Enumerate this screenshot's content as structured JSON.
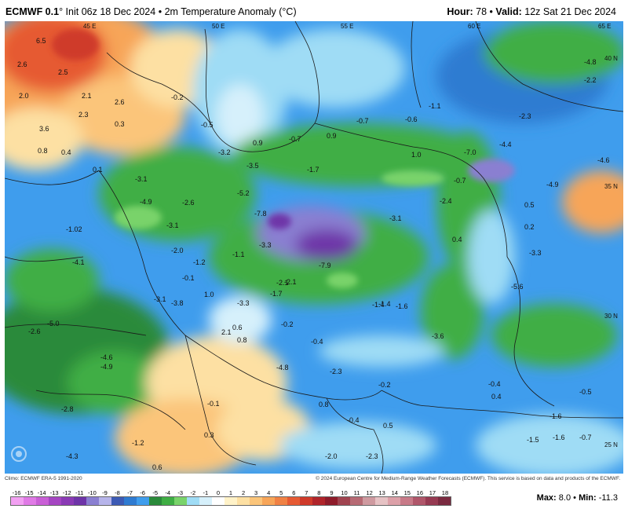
{
  "header": {
    "model": "ECMWF 0.1",
    "degree": "°",
    "init": "Init 06z 18 Dec 2024",
    "bullet": "•",
    "product": "2m Temperature Anomaly (°C)",
    "hour_label": "Hour:",
    "hour_value": "78",
    "valid_label": "Valid:",
    "valid_value": "12z Sat 21 Dec 2024"
  },
  "map": {
    "grid_labels": [
      "45 E",
      "50 E",
      "55 E",
      "60 E",
      "65 E",
      "40 N",
      "35 N",
      "30 N",
      "25 N"
    ],
    "anomaly_values": [
      {
        "v": "6.5",
        "c": "warm"
      },
      {
        "v": "2.6",
        "c": "warm"
      },
      {
        "v": "2.5",
        "c": "warm"
      },
      {
        "v": "2.0",
        "c": "warm"
      },
      {
        "v": "2.1",
        "c": "warm"
      },
      {
        "v": "2.6",
        "c": "warm"
      },
      {
        "v": "3.6",
        "c": "warm"
      },
      {
        "v": "2.3",
        "c": "warm"
      },
      {
        "v": "0.8",
        "c": "warm"
      },
      {
        "v": "0.4",
        "c": "warm"
      },
      {
        "v": "0.3",
        "c": "warm"
      },
      {
        "v": "-0.5",
        "c": "cool"
      },
      {
        "v": "-0.2",
        "c": "cool"
      },
      {
        "v": "0.9",
        "c": "warm"
      },
      {
        "v": "-0.7",
        "c": "cool"
      },
      {
        "v": "0.9",
        "c": "warm"
      },
      {
        "v": "-0.7",
        "c": "cool"
      },
      {
        "v": "-1.1",
        "c": "cool"
      },
      {
        "v": "-0.6",
        "c": "cool"
      },
      {
        "v": "-2.3",
        "c": "cool"
      },
      {
        "v": "-4.4",
        "c": "cool"
      },
      {
        "v": "-7.0",
        "c": "cool"
      },
      {
        "v": "-4.6",
        "c": "cool"
      },
      {
        "v": "-4.8",
        "c": "cool"
      },
      {
        "v": "-2.2",
        "c": "cool"
      },
      {
        "v": "0.1",
        "c": "warm"
      },
      {
        "v": "-3.1",
        "c": "cool"
      },
      {
        "v": "-4.9",
        "c": "cool"
      },
      {
        "v": "-2.6",
        "c": "cool"
      },
      {
        "v": "-3.2",
        "c": "cool"
      },
      {
        "v": "-3.5",
        "c": "cool"
      },
      {
        "v": "-1.7",
        "c": "cool"
      },
      {
        "v": "1.0",
        "c": "warm"
      },
      {
        "v": "-5.2",
        "c": "cool"
      },
      {
        "v": "-7.8",
        "c": "cool"
      },
      {
        "v": "-3.1",
        "c": "cool"
      },
      {
        "v": "-3.1",
        "c": "cool"
      },
      {
        "v": "-2.1",
        "c": "cool"
      },
      {
        "v": "-1.4",
        "c": "cool"
      },
      {
        "v": "-2.4",
        "c": "cool"
      },
      {
        "v": "-0.7",
        "c": "cool"
      },
      {
        "v": "-4.9",
        "c": "cool"
      },
      {
        "v": "-1.02",
        "c": "cool"
      },
      {
        "v": "-2.0",
        "c": "cool"
      },
      {
        "v": "-1.2",
        "c": "cool"
      },
      {
        "v": "-1.1",
        "c": "cool"
      },
      {
        "v": "-3.3",
        "c": "cool"
      },
      {
        "v": "-7.9",
        "c": "cool"
      },
      {
        "v": "0.4",
        "c": "warm"
      },
      {
        "v": "0.5",
        "c": "warm"
      },
      {
        "v": "0.2",
        "c": "warm"
      },
      {
        "v": "-3.3",
        "c": "cool"
      },
      {
        "v": "-4.1",
        "c": "cool"
      },
      {
        "v": "-0.1",
        "c": "cool"
      },
      {
        "v": "1.0",
        "c": "warm"
      },
      {
        "v": "-1.7",
        "c": "cool"
      },
      {
        "v": "-2.1",
        "c": "cool"
      },
      {
        "v": "-1.4",
        "c": "cool"
      },
      {
        "v": "-1.6",
        "c": "cool"
      },
      {
        "v": "-5.6",
        "c": "cool"
      },
      {
        "v": "-3.1",
        "c": "cool"
      },
      {
        "v": "-3.8",
        "c": "cool"
      },
      {
        "v": "-3.3",
        "c": "cool"
      },
      {
        "v": "-5.0",
        "c": "cool"
      },
      {
        "v": "-2.6",
        "c": "cool"
      },
      {
        "v": "-0.2",
        "c": "cool"
      },
      {
        "v": "0.6",
        "c": "warm"
      },
      {
        "v": "2.1",
        "c": "warm"
      },
      {
        "v": "0.8",
        "c": "warm"
      },
      {
        "v": "-0.4",
        "c": "cool"
      },
      {
        "v": "-3.6",
        "c": "cool"
      },
      {
        "v": "-4.8",
        "c": "cool"
      },
      {
        "v": "-4.9",
        "c": "cool"
      },
      {
        "v": "-4.6",
        "c": "cool"
      },
      {
        "v": "-2.3",
        "c": "cool"
      },
      {
        "v": "-0.4",
        "c": "cool"
      },
      {
        "v": "0.4",
        "c": "warm"
      },
      {
        "v": "-0.2",
        "c": "cool"
      },
      {
        "v": "-0.5",
        "c": "cool"
      },
      {
        "v": "-0.1",
        "c": "cool"
      },
      {
        "v": "0.8",
        "c": "warm"
      },
      {
        "v": "-0.4",
        "c": "cool"
      },
      {
        "v": "-1.6",
        "c": "cool"
      },
      {
        "v": "-2.8",
        "c": "cool"
      },
      {
        "v": "0.5",
        "c": "warm"
      },
      {
        "v": "0.3",
        "c": "warm"
      },
      {
        "v": "-1.2",
        "c": "cool"
      },
      {
        "v": "-4.3",
        "c": "cool"
      },
      {
        "v": "0.6",
        "c": "warm"
      },
      {
        "v": "-2.0",
        "c": "cool"
      },
      {
        "v": "-2.3",
        "c": "cool"
      },
      {
        "v": "-1.6",
        "c": "cool"
      },
      {
        "v": "-0.7",
        "c": "cool"
      },
      {
        "v": "-1.5",
        "c": "cool"
      }
    ]
  },
  "credits": {
    "climo": "Climo: ECMWF ERA-5 1991-2020",
    "copyright": "© 2024 European Centre for Medium-Range Weather Forecasts (ECMWF). This service is based on data and products of the ECMWF."
  },
  "colorbar": {
    "ticks": [
      "-16",
      "-15",
      "-14",
      "-13",
      "-12",
      "-11",
      "-10",
      "-9",
      "-8",
      "-7",
      "-6",
      "-5",
      "-4",
      "-3",
      "-2",
      "-1",
      "0",
      "1",
      "2",
      "3",
      "4",
      "5",
      "6",
      "7",
      "8",
      "9",
      "10",
      "11",
      "12",
      "13",
      "14",
      "15",
      "16",
      "17",
      "18"
    ],
    "colors": [
      "#f2a0f2",
      "#e07ae6",
      "#c95fd6",
      "#a545c2",
      "#8a3ab5",
      "#6e34a8",
      "#8a7fd1",
      "#b6b4ea",
      "#3c5ab4",
      "#2f7bd1",
      "#3f9ded",
      "#2a8a3a",
      "#3fae44",
      "#79d36a",
      "#9fdcf5",
      "#d6f0fb",
      "#ffffff",
      "#fff2c8",
      "#fde0a3",
      "#fbc57a",
      "#f7a558",
      "#f08144",
      "#e65a33",
      "#cf3a2a",
      "#b0242a",
      "#8e1b2a",
      "#a0434f",
      "#b76a74",
      "#cf9aa0",
      "#e6c2c4",
      "#dca0a8",
      "#c87a88",
      "#b0566a",
      "#963a52",
      "#7a2a40"
    ]
  },
  "stats": {
    "max_label": "Max:",
    "max_value": "8.0",
    "sep": "•",
    "min_label": "Min:",
    "min_value": "-11.3"
  }
}
